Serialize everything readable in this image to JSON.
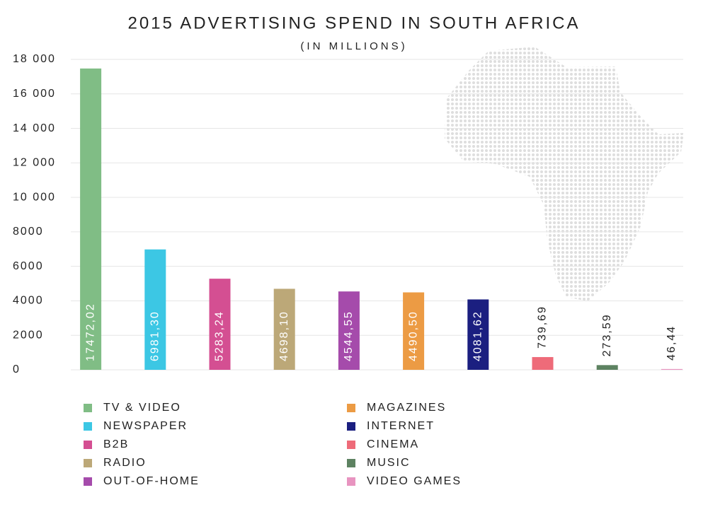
{
  "chart_data": {
    "type": "bar",
    "title": "2015 ADVERTISING SPEND IN SOUTH AFRICA",
    "subtitle": "(IN MILLIONS)",
    "categories": [
      "TV & VIDEO",
      "NEWSPAPER",
      "B2B",
      "RADIO",
      "OUT-OF-HOME",
      "MAGAZINES",
      "INTERNET",
      "CINEMA",
      "MUSIC",
      "VIDEO GAMES"
    ],
    "values": [
      17472.02,
      6981.3,
      5283.24,
      4698.1,
      4544.55,
      4490.5,
      4081.62,
      739.69,
      273.59,
      46.44
    ],
    "value_labels": [
      "17472,02",
      "6981,30",
      "5283,24",
      "4698,10",
      "4544,55",
      "4490,50",
      "4081,62",
      "739,69",
      "273,59",
      "46,44"
    ],
    "colors": [
      "#80bd85",
      "#3cc7e4",
      "#d44f92",
      "#bca878",
      "#a54bab",
      "#ec9b44",
      "#1b1f80",
      "#ee6b79",
      "#5d8261",
      "#e894c0"
    ],
    "ylim": [
      0,
      18000
    ],
    "yticks": [
      0,
      2000,
      4000,
      6000,
      8000,
      {
        "value": 10000,
        "label": "10 000"
      },
      {
        "value": 12000,
        "label": "12 000"
      },
      {
        "value": 14000,
        "label": "14 000"
      },
      {
        "value": 16000,
        "label": "16 000"
      },
      {
        "value": 18000,
        "label": "18 000"
      }
    ],
    "grid": true
  }
}
